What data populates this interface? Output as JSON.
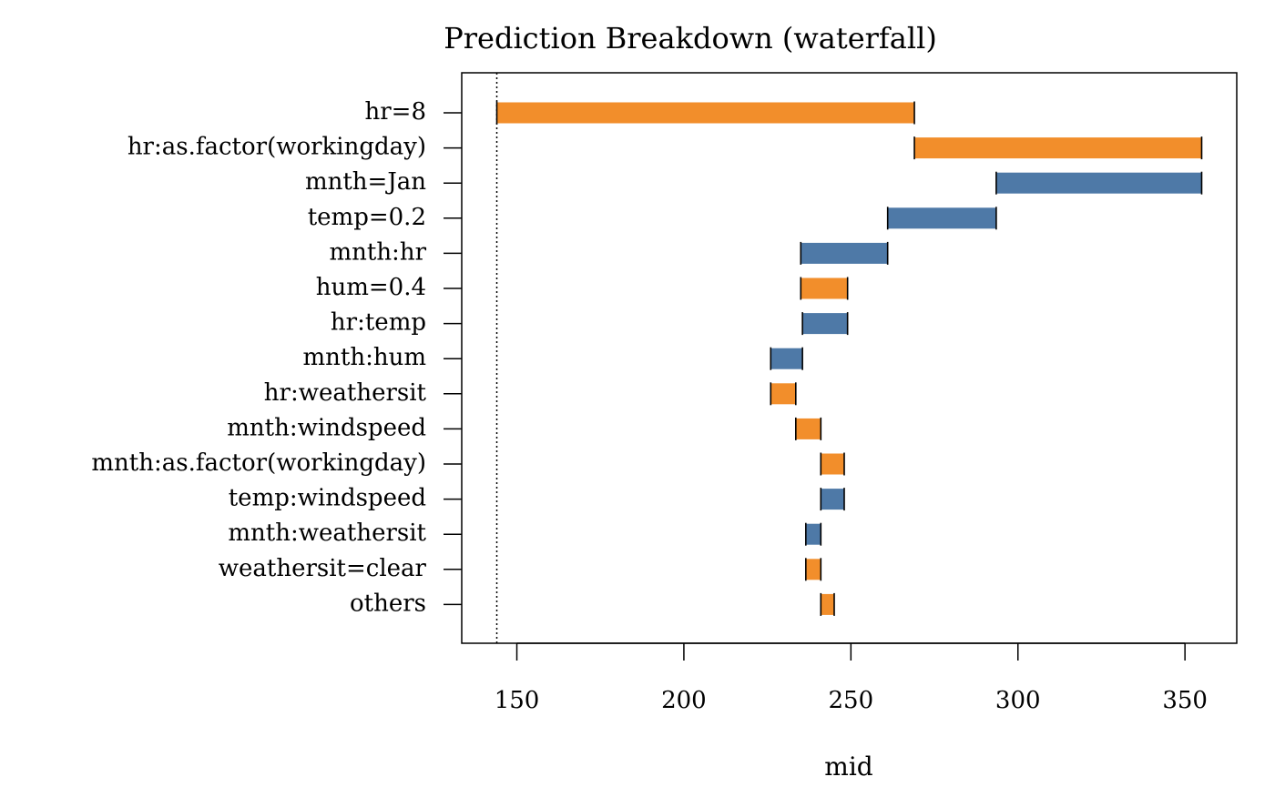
{
  "chart_data": {
    "type": "bar",
    "subtype": "waterfall",
    "title": "Prediction Breakdown (waterfall)",
    "xlabel": "mid",
    "ylabel": "",
    "xlim": [
      133.5,
      365.5
    ],
    "xticks": [
      150,
      200,
      250,
      300,
      350
    ],
    "intercept": 144,
    "grid": false,
    "legend": "none",
    "colors": {
      "positive": "#F28E2B",
      "negative": "#4E79A7"
    },
    "categories": [
      "hr=8",
      "hr:as.factor(workingday)",
      "mnth=Jan",
      "temp=0.2",
      "mnth:hr",
      "hum=0.4",
      "hr:temp",
      "mnth:hum",
      "hr:weathersit",
      "mnth:windspeed",
      "mnth:as.factor(workingday)",
      "temp:windspeed",
      "mnth:weathersit",
      "weathersit=clear",
      "others"
    ],
    "start": [
      144,
      269,
      355,
      293.5,
      261,
      235,
      249,
      235.5,
      226,
      233.5,
      241,
      248,
      241,
      236.5,
      241
    ],
    "end": [
      269,
      355,
      293.5,
      261,
      235,
      249,
      235.5,
      226,
      233.5,
      241,
      248,
      241,
      236.5,
      241,
      245
    ]
  }
}
